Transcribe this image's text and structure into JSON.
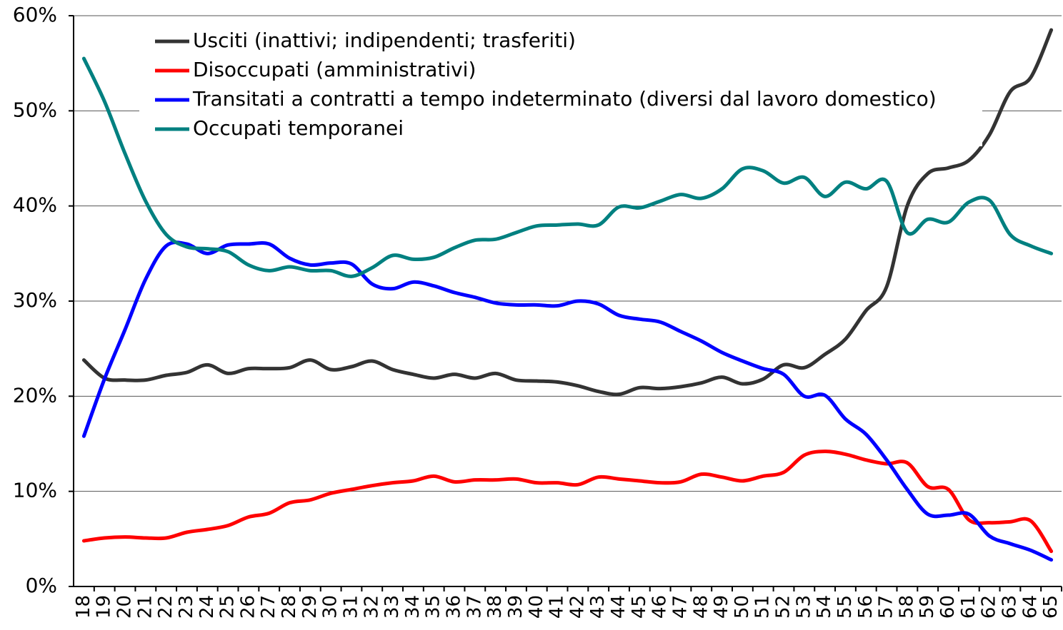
{
  "chart_data": {
    "type": "line",
    "categories": [
      "18",
      "19",
      "20",
      "21",
      "22",
      "23",
      "24",
      "25",
      "26",
      "27",
      "28",
      "29",
      "30",
      "31",
      "32",
      "33",
      "34",
      "35",
      "36",
      "37",
      "38",
      "39",
      "40",
      "41",
      "42",
      "43",
      "44",
      "45",
      "46",
      "47",
      "48",
      "49",
      "50",
      "51",
      "52",
      "53",
      "54",
      "55",
      "56",
      "57",
      "58",
      "59",
      "60",
      "61",
      "62",
      "63",
      "64",
      "65"
    ],
    "series": [
      {
        "name": "Usciti (inattivi; indipendenti; trasferiti)",
        "color": "#333333",
        "values": [
          23.8,
          21.9,
          21.7,
          21.7,
          22.2,
          22.5,
          23.3,
          22.4,
          22.9,
          22.9,
          23.0,
          23.8,
          22.8,
          23.1,
          23.7,
          22.8,
          22.3,
          21.9,
          22.3,
          21.9,
          22.4,
          21.7,
          21.6,
          21.5,
          21.1,
          20.5,
          20.2,
          20.9,
          20.8,
          21.0,
          21.4,
          22.0,
          21.3,
          21.8,
          23.3,
          23.0,
          24.4,
          26.0,
          29.0,
          31.5,
          40.0,
          43.4,
          44.0,
          44.8,
          47.5,
          52.0,
          53.5,
          58.5
        ]
      },
      {
        "name": "Disoccupati (amministrativi)",
        "color": "#ff0000",
        "values": [
          4.8,
          5.1,
          5.2,
          5.1,
          5.1,
          5.7,
          6.0,
          6.4,
          7.3,
          7.7,
          8.8,
          9.1,
          9.8,
          10.2,
          10.6,
          10.9,
          11.1,
          11.6,
          11.0,
          11.2,
          11.2,
          11.3,
          10.9,
          10.9,
          10.7,
          11.5,
          11.3,
          11.1,
          10.9,
          11.0,
          11.8,
          11.5,
          11.1,
          11.6,
          12.0,
          13.8,
          14.2,
          13.9,
          13.3,
          12.9,
          13.0,
          10.5,
          10.2,
          7.0,
          6.7,
          6.8,
          6.9,
          3.7
        ]
      },
      {
        "name": "Transitati a contratti a tempo indeterminato (diversi dal lavoro domestico)",
        "color": "#0000ff",
        "values": [
          15.8,
          21.8,
          27.0,
          32.3,
          35.8,
          36.0,
          35.0,
          35.9,
          36.0,
          36.0,
          34.5,
          33.8,
          34.0,
          33.9,
          31.8,
          31.3,
          32.0,
          31.6,
          30.9,
          30.4,
          29.8,
          29.6,
          29.6,
          29.5,
          30.0,
          29.7,
          28.5,
          28.1,
          27.8,
          26.8,
          25.8,
          24.6,
          23.7,
          22.9,
          22.3,
          20.0,
          20.1,
          17.6,
          16.0,
          13.3,
          10.2,
          7.6,
          7.5,
          7.6,
          5.3,
          4.5,
          3.8,
          2.8
        ]
      },
      {
        "name": "Occupati temporanei",
        "color": "#008080",
        "values": [
          55.5,
          51.0,
          45.5,
          40.5,
          37.0,
          35.7,
          35.5,
          35.2,
          33.8,
          33.2,
          33.6,
          33.2,
          33.2,
          32.6,
          33.5,
          34.8,
          34.4,
          34.6,
          35.6,
          36.4,
          36.5,
          37.2,
          37.9,
          38.0,
          38.1,
          38.0,
          39.9,
          39.8,
          40.5,
          41.2,
          40.8,
          41.8,
          43.9,
          43.7,
          42.4,
          43.0,
          41.0,
          42.5,
          41.8,
          42.6,
          37.2,
          38.6,
          38.3,
          40.4,
          40.6,
          37.0,
          35.8,
          35.0
        ]
      }
    ],
    "ylim": [
      0,
      60
    ],
    "yticks": [
      {
        "value": 0,
        "label": "0%"
      },
      {
        "value": 10,
        "label": "10%"
      },
      {
        "value": 20,
        "label": "20%"
      },
      {
        "value": 30,
        "label": "30%"
      },
      {
        "value": 40,
        "label": "40%"
      },
      {
        "value": 50,
        "label": "50%"
      },
      {
        "value": 60,
        "label": "60%"
      }
    ],
    "grid": true,
    "legend": "upper left"
  }
}
